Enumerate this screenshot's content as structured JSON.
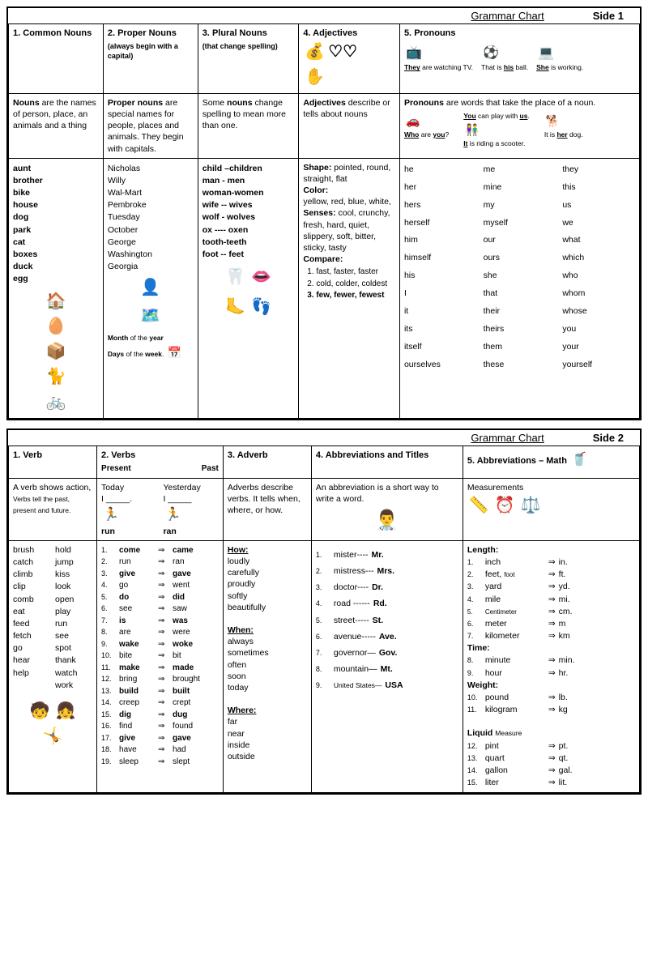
{
  "side1": {
    "header_title": "Grammar Chart",
    "header_side": "Side 1",
    "cols": {
      "c1": {
        "num": "1.",
        "title": "Common Nouns"
      },
      "c2": {
        "num": "2.",
        "title": "Proper Nouns",
        "sub": "(always begin with a capital)"
      },
      "c3": {
        "num": "3.",
        "title": "Plural Nouns",
        "sub": "(that change spelling)"
      },
      "c4": {
        "num": "4.",
        "title": "Adjectives"
      },
      "c5": {
        "num": "5.",
        "title": "Pronouns",
        "ex1a": "They",
        "ex1b": " are watching TV.",
        "ex2a": "That is ",
        "ex2b": "his",
        "ex2c": " ball.",
        "ex3a": "She",
        "ex3b": " is working."
      }
    },
    "defs": {
      "d1a": "Nouns",
      "d1b": " are the names of person, place, an animals and a thing",
      "d2a": "Proper nouns",
      "d2b": " are special names for people, places and animals.  They begin with capitals.",
      "d3a": "Some ",
      "d3b": "nouns",
      "d3c": " change spelling to mean more than one.",
      "d4a": "Adjectives",
      "d4b": " describe or tells about nouns",
      "d5a": "Pronouns",
      "d5b": " are words that take the place of a noun.",
      "d5_you": "You",
      "d5_you2": " can play with ",
      "d5_us": "us",
      "d5_who": "Who",
      "d5_who2": " are ",
      "d5_you3": "you",
      "d5_q": "?",
      "d5_it": "It",
      "d5_it2": " is riding a scooter.",
      "d5_her": "It is ",
      "d5_her2": "her",
      "d5_her3": " dog."
    },
    "commonNouns": [
      "aunt",
      "brother",
      "bike",
      "house",
      "dog",
      "park",
      "cat",
      "boxes",
      "duck",
      "egg"
    ],
    "properNouns": [
      "Nicholas",
      "Willy",
      "Wal-Mart",
      "Pembroke",
      "Tuesday",
      "October",
      "",
      "George",
      "Washington",
      "",
      "",
      "Georgia"
    ],
    "properExtra1a": "Month",
    "properExtra1b": " of the ",
    "properExtra1c": "year",
    "properExtra2a": "Days",
    "properExtra2b": " of the ",
    "properExtra2c": "week",
    "plurals": [
      "child –children",
      "man  -  men",
      "woman-women",
      "wife -- wives",
      "wolf - wolves",
      "ox ---- oxen",
      "tooth-teeth",
      "",
      "",
      "foot -- feet"
    ],
    "adj": {
      "shape_h": "Shape:",
      "shape": " pointed, round, straight, flat",
      "color_h": "Color:",
      "color": "yellow, red, blue, white,",
      "senses_h": "Senses:",
      "senses": "  cool, crunchy, fresh, hard, quiet, slippery, soft, bitter, sticky, tasty",
      "compare_h": "Compare:",
      "cmp1": "fast, faster, faster",
      "cmp2": "cold, colder, coldest",
      "cmp3": "few, fewer, fewest"
    },
    "pronouns": [
      "he",
      "me",
      "they",
      "her",
      "mine",
      "this",
      "hers",
      "my",
      "us",
      "herself",
      "myself",
      "we",
      "him",
      "our",
      "what",
      "himself",
      "ours",
      "which",
      "his",
      "she",
      "who",
      "I",
      "that",
      "whom",
      "it",
      "their",
      "whose",
      "its",
      "theirs",
      "you",
      "itself",
      "them",
      "your",
      "ourselves",
      "these",
      "yourself"
    ]
  },
  "side2": {
    "header_title": "Grammar Chart",
    "header_side": "Side 2",
    "cols": {
      "c1": {
        "num": "1.",
        "title": "Verb"
      },
      "c2": {
        "num": "2.",
        "title": "Verbs",
        "subL": "Present",
        "subR": "Past"
      },
      "c3": {
        "num": "3.",
        "title": "Adverb"
      },
      "c4": {
        "num": "4.",
        "title": "Abbreviations and Titles"
      },
      "c5": {
        "num": "5.",
        "title": "Abbreviations – Math"
      }
    },
    "defs": {
      "d1a": "A verb shows action,",
      "d1b": " Verbs tell the past, present and future.",
      "d2_today": "Today",
      "d2_yest": "Yesterday",
      "d2_i": "I _____.",
      "d2_i2": "I _____",
      "d2_run": "run",
      "d2_ran": "ran",
      "d3": "Adverbs describe verbs. It tells when, where, or how.",
      "d4": "An abbreviation is a short way to write a word.",
      "d5": "Measurements"
    },
    "verbList": [
      "brush",
      "hold",
      "catch",
      "jump",
      "climb",
      "kiss",
      "clip",
      "look",
      "comb",
      "open",
      "eat",
      "play",
      "feed",
      "run",
      "fetch",
      "see",
      "go",
      "spot",
      "hear",
      "thank",
      "help",
      "watch",
      "",
      "work"
    ],
    "verbPairs": [
      {
        "n": "1.",
        "p": "come",
        "t": "came",
        "b": true
      },
      {
        "n": "2.",
        "p": "run",
        "t": "ran",
        "b": false
      },
      {
        "n": "3.",
        "p": "give",
        "t": "gave",
        "b": true
      },
      {
        "n": "4.",
        "p": "go",
        "t": "went",
        "b": false
      },
      {
        "n": "5.",
        "p": "do",
        "t": "did",
        "b": true
      },
      {
        "n": "6.",
        "p": "see",
        "t": "saw",
        "b": false
      },
      {
        "n": "7.",
        "p": "is",
        "t": "was",
        "b": true
      },
      {
        "n": "8.",
        "p": "are",
        "t": "were",
        "b": false
      },
      {
        "n": "9.",
        "p": "wake",
        "t": "woke",
        "b": true
      },
      {
        "n": "10.",
        "p": "bite",
        "t": "bit",
        "b": false
      },
      {
        "n": "11.",
        "p": "make",
        "t": "made",
        "b": true
      },
      {
        "n": "12.",
        "p": "bring",
        "t": "brought",
        "b": false
      },
      {
        "n": "13.",
        "p": "build",
        "t": "built",
        "b": true
      },
      {
        "n": "14.",
        "p": "creep",
        "t": "crept",
        "b": false
      },
      {
        "n": "15.",
        "p": "dig",
        "t": "dug",
        "b": true
      },
      {
        "n": "16.",
        "p": "find",
        "t": "found",
        "b": false
      },
      {
        "n": "17.",
        "p": "give",
        "t": "gave",
        "b": true
      },
      {
        "n": "18.",
        "p": "have",
        "t": "had",
        "b": false
      },
      {
        "n": "19.",
        "p": "sleep",
        "t": "slept",
        "b": false
      }
    ],
    "adverbs": {
      "how_h": "How:",
      "how": [
        "loudly",
        "carefully",
        "proudly",
        "softly",
        "beautifully"
      ],
      "when_h": "When:",
      "when": [
        "always",
        "sometimes",
        "often",
        "soon",
        "today"
      ],
      "where_h": "Where:",
      "where": [
        "far",
        "near",
        "inside",
        "outside"
      ]
    },
    "abbrTitles": [
      {
        "n": "1.",
        "t": "mister----",
        "a": "Mr."
      },
      {
        "n": "2.",
        "t": "mistress---",
        "a": "Mrs."
      },
      {
        "n": "3.",
        "t": "doctor----",
        "a": "Dr."
      },
      {
        "n": "4.",
        "t": "road ------",
        "a": "Rd."
      },
      {
        "n": "5.",
        "t": "street-----",
        "a": "St."
      },
      {
        "n": "6.",
        "t": "avenue-----",
        "a": "Ave."
      },
      {
        "n": "7.",
        "t": "governor—",
        "a": "Gov."
      },
      {
        "n": "8.",
        "t": "mountain—",
        "a": "Mt."
      },
      {
        "n": "9.",
        "t": "United States—",
        "a": "USA",
        "small": true
      }
    ],
    "abbrMath": {
      "length_h": "Length:",
      "length": [
        {
          "n": "1.",
          "t": "inch",
          "a": "in."
        },
        {
          "n": "2.",
          "t": "feet, foot",
          "a": "ft.",
          "sm": true
        },
        {
          "n": "3.",
          "t": "yard",
          "a": "yd."
        },
        {
          "n": "4.",
          "t": "mile",
          "a": "mi."
        },
        {
          "n": "5.",
          "t": "Centimeter",
          "a": "cm.",
          "tiny": true
        },
        {
          "n": "6.",
          "t": "meter",
          "a": "m"
        },
        {
          "n": "7.",
          "t": "kilometer",
          "a": "km"
        }
      ],
      "time_h": "Time:",
      "time": [
        {
          "n": "8.",
          "t": "minute",
          "a": "min."
        },
        {
          "n": "9.",
          "t": "hour",
          "a": "hr."
        }
      ],
      "weight_h": "Weight:",
      "weight": [
        {
          "n": "10.",
          "t": "pound",
          "a": "lb."
        },
        {
          "n": "11.",
          "t": "kilogram",
          "a": "kg"
        }
      ],
      "liquid_h": "Liquid ",
      "liquid_h2": "Measure",
      "liquid": [
        {
          "n": "12.",
          "t": "pint",
          "a": "pt."
        },
        {
          "n": "13.",
          "t": "quart",
          "a": "qt."
        },
        {
          "n": "14.",
          "t": "gallon",
          "a": "gal."
        },
        {
          "n": "15.",
          "t": "liter",
          "a": "lit."
        }
      ]
    }
  }
}
